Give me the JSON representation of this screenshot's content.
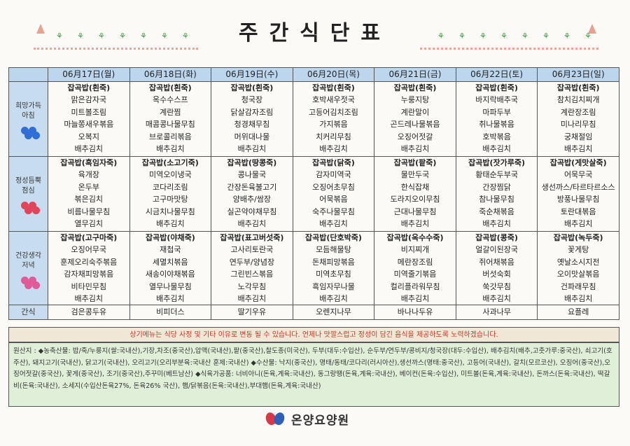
{
  "title": "주간식단표",
  "days": [
    "06月17日(월)",
    "06月18日(화)",
    "06月19日(수)",
    "06月20日(목)",
    "06月21日(금)",
    "06月22日(토)",
    "06月23日(일)"
  ],
  "meals": [
    {
      "label_lines": [
        "희망가득",
        "아침"
      ],
      "flower_color": "#2f6fd6",
      "cells": [
        [
          "잡곡밥(흰죽)",
          "맑은감자국",
          "미트볼조림",
          "마늘쫑새우볶음",
          "오복지",
          "배추김치"
        ],
        [
          "잡곡밥(흰죽)",
          "옥수수스프",
          "계란찜",
          "매콤콩나물무침",
          "브로콜리볶음",
          "배추김치"
        ],
        [
          "잡곡밥(흰죽)",
          "청국장",
          "닭살감자조림",
          "청경채무침",
          "머위대나물",
          "배추김치"
        ],
        [
          "잡곡밥(흰죽)",
          "호박새우젓국",
          "고등어김치조림",
          "가지볶음",
          "치커리무침",
          "배추김치"
        ],
        [
          "잡곡밥(흰죽)",
          "누룽지탕",
          "계란말이",
          "곤드레나물볶음",
          "오징어젓갈",
          "배추김치"
        ],
        [
          "잡곡밥(흰죽)",
          "바지락배추국",
          "마파두부",
          "취나물볶음",
          "호박볶음",
          "배추김치"
        ],
        [
          "잡곡밥(흰죽)",
          "참치김치찌개",
          "계란장조림",
          "미나리무침",
          "궁채절임",
          "배추김치"
        ]
      ]
    },
    {
      "label_lines": [
        "정성듬뿍",
        "점심"
      ],
      "flower_color": "#e0455a",
      "cells": [
        [
          "잡곡밥(흑임자죽)",
          "육개장",
          "온두부",
          "볶은김치",
          "비름나물무침",
          "열무김치"
        ],
        [
          "잡곡밥(소고기죽)",
          "미역오이냉국",
          "코다리조림",
          "고구마맛탕",
          "시금치나물무침",
          "배추김치"
        ],
        [
          "잡곡밥(땅콩죽)",
          "콩나물국",
          "간장돈육불고기",
          "양배추/쌈장",
          "실곤약야채무침",
          "배추김치"
        ],
        [
          "잡곡밥(닭죽)",
          "감자미역국",
          "오징어초무침",
          "어묵볶음",
          "숙주나물무침",
          "배추김치"
        ],
        [
          "잡곡밥(팥죽)",
          "물만두국",
          "한식잡채",
          "도라지오이무침",
          "근대나물무침",
          "배추김치"
        ],
        [
          "잡곡밥(잣가루죽)",
          "황태순두부국",
          "간장찜닭",
          "참나물무침",
          "죽순채볶음",
          "배추김치"
        ],
        [
          "잡곡밥(게맛살죽)",
          "어묵무국",
          "생선까스/타르타르소스",
          "방풍나물무침",
          "토란대볶음",
          "배추김치"
        ]
      ]
    },
    {
      "label_lines": [
        "건강생각",
        "저녁"
      ],
      "flower_color": "#e05a9a",
      "cells": [
        [
          "잡곡밥(고구마죽)",
          "오징어무국",
          "훈제오리숙주볶음",
          "감자채피망볶음",
          "비타민무침",
          "배추김치"
        ],
        [
          "잡곡밥(야채죽)",
          "재첩국",
          "세멸치볶음",
          "새송이야채볶음",
          "열무나물무침",
          "배추김치"
        ],
        [
          "잡곡밥(표고버섯죽)",
          "고사리토란국",
          "연두부/양념장",
          "그린빈스볶음",
          "노각무침",
          "배추김치"
        ],
        [
          "잡곡밥(단호박죽)",
          "모듬해물탕",
          "돈채피망볶음",
          "미역초무침",
          "흑임자무나물",
          "배추김치"
        ],
        [
          "잡곡밥(옥수수죽)",
          "비지찌개",
          "메란장조림",
          "미역줄기볶음",
          "컬리플라워무침",
          "배추김치"
        ],
        [
          "잡곡밥(콩죽)",
          "얼갈이된장국",
          "쥐어채볶음",
          "버섯숙회",
          "쑥갓무침",
          "배추김치"
        ],
        [
          "잡곡밥(녹두죽)",
          "꽃게탕",
          "옛날소시지전",
          "오이맛살볶음",
          "건파래무침",
          "배추김치"
        ]
      ]
    }
  ],
  "snack": {
    "label": "간식",
    "items": [
      "검은콩두유",
      "비피더스",
      "딸기우유",
      "오렌지나무",
      "바나나두유",
      "사과나무",
      "요플레"
    ]
  },
  "notice": "상기메뉴는 식당 사정 및 기타 이유로 변동 될 수 있습니다. 언제나 맛깔스럽고 정성이 담긴 음식을 제공하도록 노력하겠습니다.",
  "origin": "원산지 : ◆농축산물: 밥/죽/누룽지(쌀:국내산),기장,차조(중국산),압맥(국내산),팥(중국산),찰도종(미국산), 두부(대두:수입산), 순두부/연두부/콩비지/청국장(대두:수입산), 배추김치(배추,고춧가루:중국산), 쇠고기(호주산), 돼지고기(국내산), 닭고기(국내산), 오리고기(오리부분육:국내산 훈제:국내산)   ◆수산물: 낙지(중국산), 명태/동태/코다리(러시아산),생선까스(명태:중국산), 고등어(국내산), 갈치(모르코산), 오징어(중국산),오징어젓갈(중국산), 꽃게(중국산), 조기(중국산),주꾸미(베트남산)   ◆식육가공품: 너비아니(돈육,계육:국내산), 동그랑땡(돈육,계육:국내산), 베이컨(돈육:수입산), 미트볼(돈육,계육:국내산), 돈까스(돈육:국내산), 떡갈비(돈육:국내산), 소세지(수입산돈육27%, 돈육26% 국산), 햄/닭볶음(돈육:국내산),부대햄(돈육,계육:국내산)",
  "logo_text": "온양요양원",
  "colors": {
    "header_bg": "#bcd6ee",
    "notice_bg": "#f1e7d6",
    "notice_text": "#c0392b",
    "origin_bg": "#e0efd8"
  }
}
